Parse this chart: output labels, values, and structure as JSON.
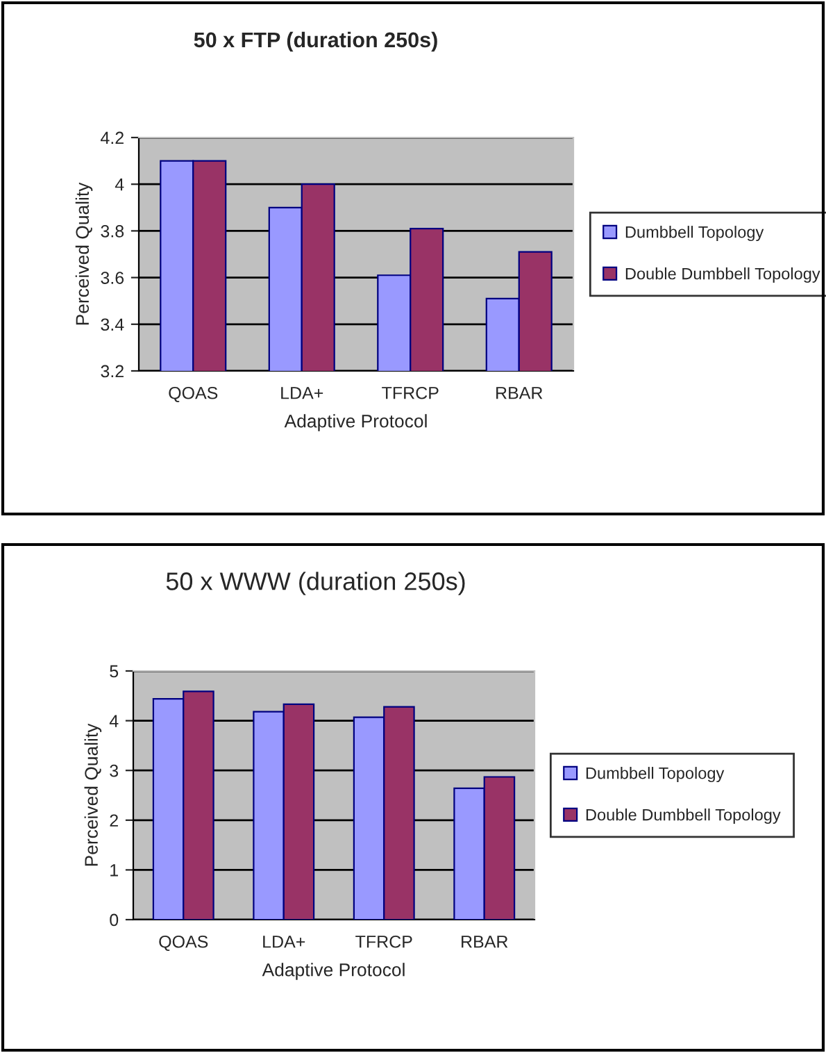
{
  "chart_data": [
    {
      "type": "bar",
      "title": "50 x FTP (duration 250s)",
      "xlabel": "Adaptive Protocol",
      "ylabel": "Perceived Quality",
      "categories": [
        "QOAS",
        "LDA+",
        "TFRCP",
        "RBAR"
      ],
      "series": [
        {
          "name": "Dumbbell Topology",
          "color": "#9999ff",
          "values": [
            4.1,
            3.9,
            3.61,
            3.51
          ]
        },
        {
          "name": "Double Dumbbell Topology",
          "color": "#993366",
          "values": [
            4.1,
            4.0,
            3.81,
            3.71
          ]
        }
      ],
      "ylim": [
        3.2,
        4.2
      ],
      "yticks": [
        3.2,
        3.4,
        3.6,
        3.8,
        4,
        4.2
      ],
      "grid": "y",
      "legend": "right"
    },
    {
      "type": "bar",
      "title": "50 x WWW (duration 250s)",
      "xlabel": "Adaptive Protocol",
      "ylabel": "Perceived Quality",
      "categories": [
        "QOAS",
        "LDA+",
        "TFRCP",
        "RBAR"
      ],
      "series": [
        {
          "name": "Dumbbell Topology",
          "color": "#9999ff",
          "values": [
            4.44,
            4.18,
            4.07,
            2.64
          ]
        },
        {
          "name": "Double Dumbbell Topology",
          "color": "#993366",
          "values": [
            4.59,
            4.33,
            4.28,
            2.87
          ]
        }
      ],
      "ylim": [
        0,
        5
      ],
      "yticks": [
        0,
        1,
        2,
        3,
        4,
        5
      ],
      "grid": "y",
      "legend": "right"
    }
  ]
}
